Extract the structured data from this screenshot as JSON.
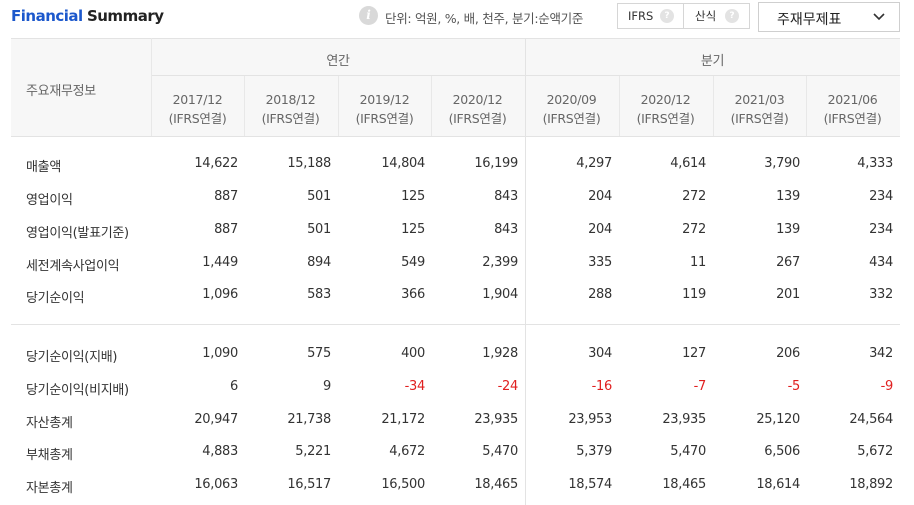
{
  "header": {
    "title_part1": "Financial",
    "title_part2": "Summary",
    "unit_text": "단위: 억원, %, 배, 천주, 분기:순액기준",
    "toggle": [
      {
        "label": "IFRS",
        "help": "?"
      },
      {
        "label": "산식",
        "help": "?"
      }
    ],
    "dropdown": {
      "selected": "주재무제표"
    }
  },
  "table": {
    "corner_label": "주요재무정보",
    "groups": [
      {
        "label": "연간"
      },
      {
        "label": "분기"
      }
    ],
    "periods": [
      {
        "date": "2017/12",
        "basis": "(IFRS연결)"
      },
      {
        "date": "2018/12",
        "basis": "(IFRS연결)"
      },
      {
        "date": "2019/12",
        "basis": "(IFRS연결)"
      },
      {
        "date": "2020/12",
        "basis": "(IFRS연결)"
      },
      {
        "date": "2020/09",
        "basis": "(IFRS연결)"
      },
      {
        "date": "2020/12",
        "basis": "(IFRS연결)"
      },
      {
        "date": "2021/03",
        "basis": "(IFRS연결)"
      },
      {
        "date": "2021/06",
        "basis": "(IFRS연결)"
      }
    ],
    "rows": [
      {
        "label": "매출액",
        "values": [
          "14,622",
          "15,188",
          "14,804",
          "16,199",
          "4,297",
          "4,614",
          "3,790",
          "4,333"
        ]
      },
      {
        "label": "영업이익",
        "values": [
          "887",
          "501",
          "125",
          "843",
          "204",
          "272",
          "139",
          "234"
        ]
      },
      {
        "label": "영업이익(발표기준)",
        "values": [
          "887",
          "501",
          "125",
          "843",
          "204",
          "272",
          "139",
          "234"
        ]
      },
      {
        "label": "세전계속사업이익",
        "values": [
          "1,449",
          "894",
          "549",
          "2,399",
          "335",
          "11",
          "267",
          "434"
        ]
      },
      {
        "label": "당기순이익",
        "values": [
          "1,096",
          "583",
          "366",
          "1,904",
          "288",
          "119",
          "201",
          "332"
        ]
      },
      {
        "label": "당기순이익(지배)",
        "values": [
          "1,090",
          "575",
          "400",
          "1,928",
          "304",
          "127",
          "206",
          "342"
        ]
      },
      {
        "label": "당기순이익(비지배)",
        "values": [
          "6",
          "9",
          "-34",
          "-24",
          "-16",
          "-7",
          "-5",
          "-9"
        ]
      },
      {
        "label": "자산총계",
        "values": [
          "20,947",
          "21,738",
          "21,172",
          "23,935",
          "23,953",
          "23,935",
          "25,120",
          "24,564"
        ]
      },
      {
        "label": "부채총계",
        "values": [
          "4,883",
          "5,221",
          "4,672",
          "5,470",
          "5,379",
          "5,470",
          "6,506",
          "5,672"
        ]
      },
      {
        "label": "자본총계",
        "values": [
          "16,063",
          "16,517",
          "16,500",
          "18,465",
          "18,574",
          "18,465",
          "18,614",
          "18,892"
        ]
      }
    ]
  },
  "colors": {
    "title_accent": "#1c58cc",
    "negative": "#e02020",
    "header_bg": "#f7f7f7"
  }
}
